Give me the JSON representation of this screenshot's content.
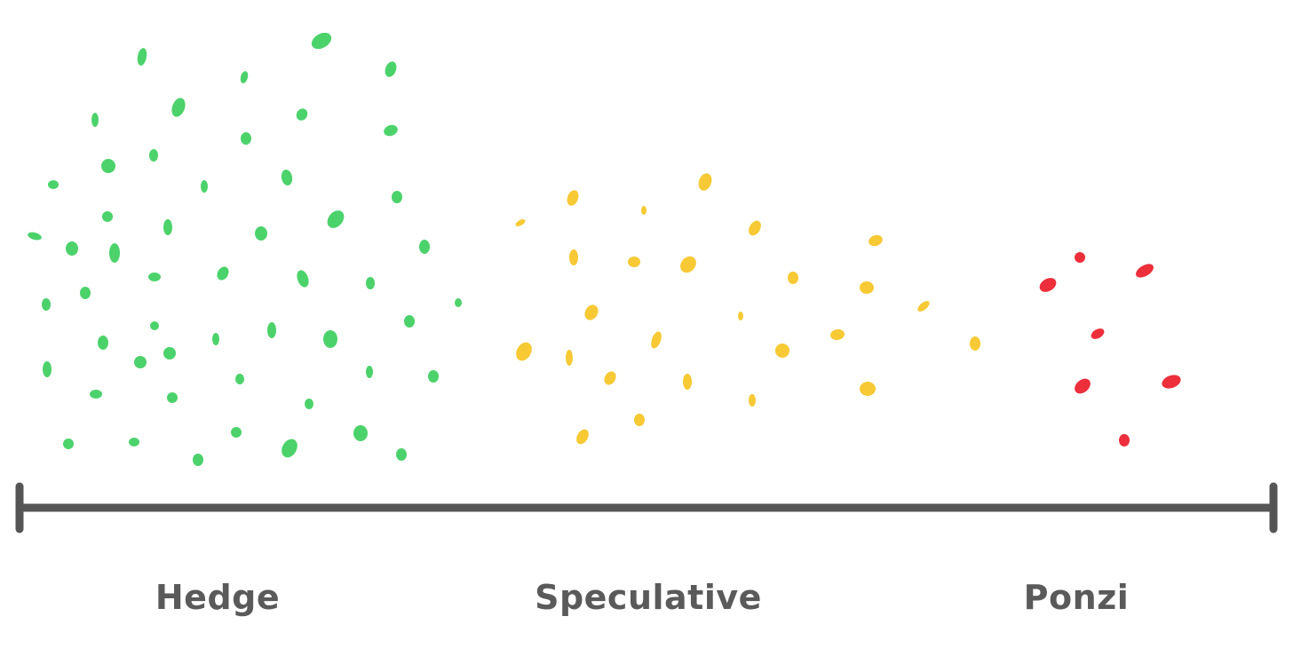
{
  "labels": {
    "hedge": "Hedge",
    "speculative": "Speculative",
    "ponzi": "Ponzi"
  },
  "colors": {
    "hedge": "#4cd26b",
    "speculative": "#f7c934",
    "ponzi": "#ec2f3b",
    "axis": "#555555",
    "label": "#5a5a5a"
  }
}
